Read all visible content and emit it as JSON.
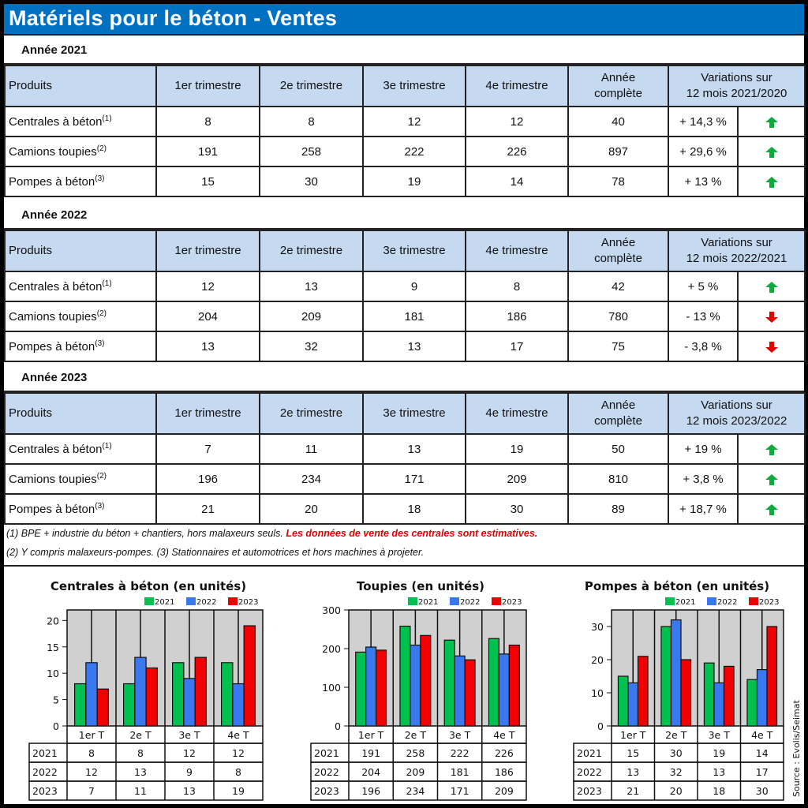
{
  "title": "Matériels pour le béton - Ventes",
  "colors": {
    "title_bar": "#0070C0",
    "header_fill": "#C5D9F1",
    "up_arrow": "#0FAA3C",
    "down_arrow": "#E00000",
    "note_red": "#E00000",
    "series_2021": "#00C050",
    "series_2022": "#3A78F0",
    "series_2023": "#F00000",
    "plot_bg": "#D0D0D0"
  },
  "headers": {
    "produits": "Produits",
    "q1": "1er trimestre",
    "q2": "2e trimestre",
    "q3": "3e trimestre",
    "q4": "4e trimestre",
    "annee_1": "Année",
    "annee_2": "complète",
    "var_1": "Variations sur"
  },
  "sections": [
    {
      "label": "Année 2021",
      "var_period": "12 mois 2021/2020",
      "rows": [
        {
          "name": "Centrales à béton",
          "note": "(1)",
          "q1": "8",
          "q2": "8",
          "q3": "12",
          "q4": "12",
          "total": "40",
          "variation": "+ 14,3 %",
          "trend": "up"
        },
        {
          "name": "Camions toupies",
          "note": "(2)",
          "q1": "191",
          "q2": "258",
          "q3": "222",
          "q4": "226",
          "total": "897",
          "variation": "+ 29,6 %",
          "trend": "up"
        },
        {
          "name": "Pompes à béton",
          "note": "(3)",
          "q1": "15",
          "q2": "30",
          "q3": "19",
          "q4": "14",
          "total": "78",
          "variation": "+ 13 %",
          "trend": "up"
        }
      ]
    },
    {
      "label": "Année 2022",
      "var_period": "12 mois 2022/2021",
      "rows": [
        {
          "name": "Centrales à béton",
          "note": "(1)",
          "q1": "12",
          "q2": "13",
          "q3": "9",
          "q4": "8",
          "total": "42",
          "variation": "+ 5 %",
          "trend": "up"
        },
        {
          "name": "Camions toupies",
          "note": "(2)",
          "q1": "204",
          "q2": "209",
          "q3": "181",
          "q4": "186",
          "total": "780",
          "variation": "- 13 %",
          "trend": "down"
        },
        {
          "name": "Pompes à béton",
          "note": "(3)",
          "q1": "13",
          "q2": "32",
          "q3": "13",
          "q4": "17",
          "total": "75",
          "variation": "- 3,8 %",
          "trend": "down"
        }
      ]
    },
    {
      "label": "Année 2023",
      "var_period": "12 mois 2023/2022",
      "rows": [
        {
          "name": "Centrales à béton",
          "note": "(1)",
          "q1": "7",
          "q2": "11",
          "q3": "13",
          "q4": "19",
          "total": "50",
          "variation": "+ 19 %",
          "trend": "up"
        },
        {
          "name": "Camions toupies",
          "note": "(2)",
          "q1": "196",
          "q2": "234",
          "q3": "171",
          "q4": "209",
          "total": "810",
          "variation": "+ 3,8 %",
          "trend": "up"
        },
        {
          "name": "Pompes à béton",
          "note": "(3)",
          "q1": "21",
          "q2": "20",
          "q3": "18",
          "q4": "30",
          "total": "89",
          "variation": "+ 18,7 %",
          "trend": "up"
        }
      ]
    }
  ],
  "notes": {
    "line1_black": "(1) BPE + industrie du béton + chantiers, hors malaxeurs seuls.",
    "line1_red": "Les données de vente des centrales sont estimatives.",
    "line2": "(2) Y compris malaxeurs-pompes. (3) Stationnaires et automotrices et hors machines à projeter."
  },
  "source": "Source : Evolis/Seimat",
  "chart_data": [
    {
      "type": "bar",
      "title": "Centrales à béton (en unités)",
      "categories": [
        "1er T",
        "2e T",
        "3e T",
        "4e T"
      ],
      "series": [
        {
          "name": "2021",
          "values": [
            8,
            8,
            12,
            12
          ]
        },
        {
          "name": "2022",
          "values": [
            12,
            13,
            9,
            8
          ]
        },
        {
          "name": "2023",
          "values": [
            7,
            11,
            13,
            19
          ]
        }
      ],
      "ylim": [
        0,
        22
      ],
      "yticks": [
        0,
        5,
        10,
        15,
        20
      ],
      "legend": "top-right",
      "xlabel": "",
      "ylabel": "",
      "data_table": true
    },
    {
      "type": "bar",
      "title": "Toupies (en unités)",
      "categories": [
        "1er T",
        "2e T",
        "3e T",
        "4e T"
      ],
      "series": [
        {
          "name": "2021",
          "values": [
            191,
            258,
            222,
            226
          ]
        },
        {
          "name": "2022",
          "values": [
            204,
            209,
            181,
            186
          ]
        },
        {
          "name": "2023",
          "values": [
            196,
            234,
            171,
            209
          ]
        }
      ],
      "ylim": [
        0,
        300
      ],
      "yticks": [
        0,
        100,
        200,
        300
      ],
      "legend": "top-right",
      "xlabel": "",
      "ylabel": "",
      "data_table": true
    },
    {
      "type": "bar",
      "title": "Pompes à béton (en unités)",
      "categories": [
        "1er T",
        "2e T",
        "3e T",
        "4e T"
      ],
      "series": [
        {
          "name": "2021",
          "values": [
            15,
            30,
            19,
            14
          ]
        },
        {
          "name": "2022",
          "values": [
            13,
            32,
            13,
            17
          ]
        },
        {
          "name": "2023",
          "values": [
            21,
            20,
            18,
            30
          ]
        }
      ],
      "ylim": [
        0,
        35
      ],
      "yticks": [
        0,
        10,
        20,
        30
      ],
      "legend": "top-right",
      "xlabel": "",
      "ylabel": "",
      "data_table": true
    }
  ]
}
